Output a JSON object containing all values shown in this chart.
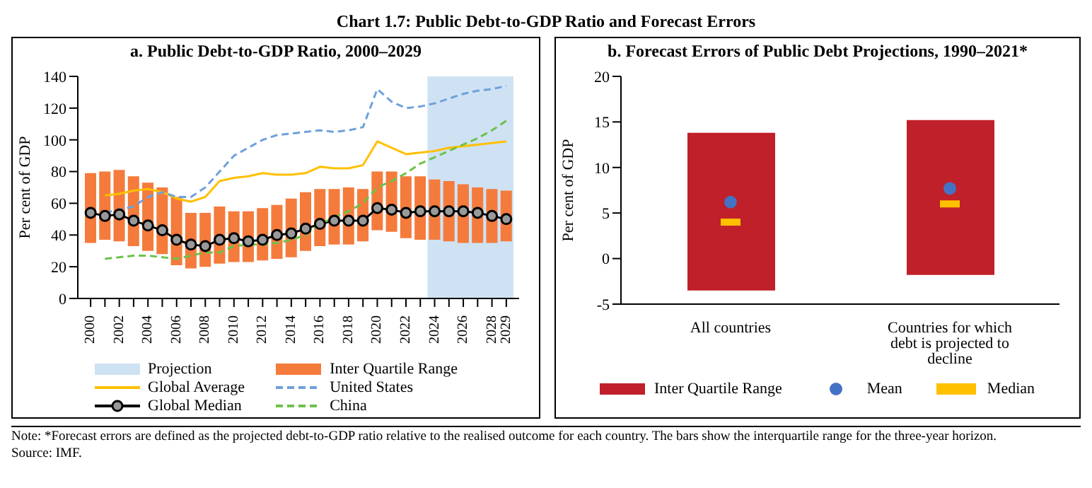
{
  "chart_data": [
    {
      "type": "bar",
      "title": "Chart 1.7: Public Debt-to-GDP Ratio and Forecast Errors",
      "subtitle": "a. Public Debt-to-GDP Ratio, 2000–2029",
      "ylabel": "Per cent of GDP",
      "categories": [
        "2000",
        null,
        "2002",
        null,
        "2004",
        null,
        "2006",
        null,
        "2008",
        null,
        "2010",
        null,
        "2012",
        null,
        "2014",
        null,
        "2016",
        null,
        "2018",
        null,
        "2020",
        null,
        "2022",
        null,
        "2024",
        null,
        "2026",
        null,
        "2028",
        "2029"
      ],
      "series": [
        {
          "name": "Inter Quartile Range",
          "color": "#f47b3c",
          "base": [
            35,
            37,
            36,
            33,
            30,
            28,
            21,
            19,
            20,
            22,
            23,
            23,
            24,
            25,
            26,
            30,
            33,
            34,
            34,
            36,
            43,
            42,
            38,
            37,
            37,
            36,
            35,
            35,
            35,
            36
          ],
          "values": [
            44,
            43,
            45,
            44,
            43,
            42,
            43,
            35,
            34,
            36,
            32,
            32,
            33,
            34,
            37,
            37,
            36,
            35,
            36,
            33,
            37,
            38,
            39,
            40,
            38,
            38,
            37,
            35,
            34,
            32
          ]
        },
        {
          "name": "Global Average",
          "type": "line",
          "color": "#ffc000",
          "line_style": "solid",
          "marker": "none",
          "values": [
            null,
            65,
            66,
            68,
            69,
            67,
            63,
            61,
            64,
            74,
            76,
            77,
            79,
            78,
            78,
            79,
            83,
            82,
            82,
            84,
            99,
            95,
            91,
            92,
            93,
            95,
            96,
            97,
            98,
            99
          ]
        },
        {
          "name": "United States",
          "type": "line",
          "color": "#6fa0dc",
          "line_style": "dashed",
          "marker": "none",
          "values": [
            null,
            54,
            56,
            58,
            64,
            67,
            64,
            64,
            70,
            80,
            90,
            95,
            100,
            103,
            104,
            105,
            106,
            105,
            106,
            108,
            132,
            124,
            120,
            121,
            123,
            126,
            129,
            131,
            132,
            134
          ]
        },
        {
          "name": "Global Median",
          "type": "line",
          "color": "#000000",
          "line_style": "solid",
          "marker": "circle",
          "values": [
            54,
            52,
            53,
            49,
            46,
            43,
            37,
            34,
            33,
            37,
            38,
            36,
            37,
            40,
            41,
            44,
            47,
            49,
            49,
            49,
            57,
            56,
            54,
            55,
            55,
            55,
            55,
            54,
            52,
            50
          ]
        },
        {
          "name": "China",
          "type": "line",
          "color": "#6cc24a",
          "line_style": "dashed",
          "marker": "none",
          "values": [
            null,
            25,
            26,
            27,
            27,
            26,
            25,
            27,
            29,
            29,
            33,
            34,
            34,
            35,
            37,
            40,
            47,
            51,
            55,
            60,
            70,
            74,
            79,
            85,
            89,
            93,
            97,
            101,
            106,
            112
          ]
        }
      ],
      "bands": [
        {
          "axis": "x",
          "from": "2024",
          "to": "2029",
          "label": "Projection",
          "color": "#cfe2f3"
        }
      ],
      "ylim": [
        0,
        140
      ],
      "yticks": [
        0,
        20,
        40,
        60,
        80,
        100,
        120,
        140
      ],
      "grid": false,
      "legend": "bottom",
      "annotations": [
        "Note: *Forecast errors are defined as the projected debt-to-GDP ratio relative to the realised outcome for each country. The bars show the interquartile range for the three-year horizon.",
        "Source: IMF."
      ]
    },
    {
      "type": "bar",
      "title": "b. Forecast Errors of Public Debt Projections, 1990–2021*",
      "ylabel": "Per cent of GDP",
      "categories": [
        "All countries",
        "Countries for which debt is projected to decline"
      ],
      "series": [
        {
          "name": "Inter Quartile Range",
          "color": "#c0202a",
          "base": [
            -3.5,
            -1.8
          ],
          "values": [
            17.3,
            17
          ]
        },
        {
          "name": "Mean",
          "type": "scatter",
          "color": "#4472c4",
          "marker": "circle",
          "values": [
            6.2,
            7.7
          ]
        },
        {
          "name": "Median",
          "type": "scatter",
          "color": "#ffc000",
          "marker": "square",
          "values": [
            4,
            6
          ]
        }
      ],
      "ylim": [
        -5,
        20
      ],
      "yticks": [
        -5,
        0,
        5,
        10,
        15,
        20
      ],
      "grid": false,
      "legend": "bottom"
    }
  ]
}
